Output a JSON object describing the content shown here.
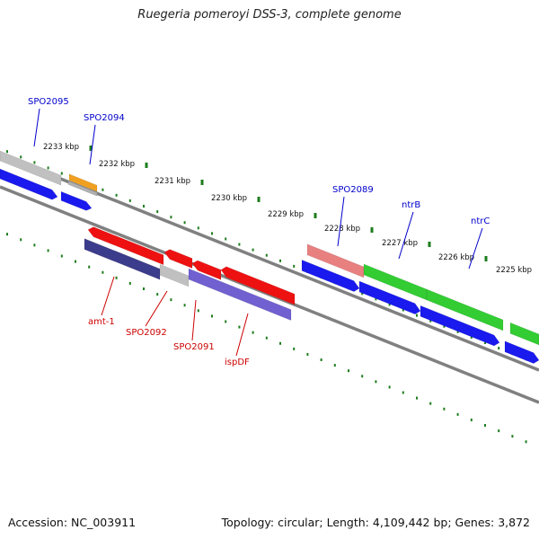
{
  "title": "Ruegeria pomeroyi DSS-3, complete genome",
  "footer": {
    "accession": "Accession: NC_003911",
    "topology": "Topology: circular; Length: 4,109,442 bp; Genes: 3,872"
  },
  "colors": {
    "backbone": "#707070",
    "tick": "#1e7d1e",
    "forward_label": "#0000cc",
    "reverse_label": "#cc0000"
  },
  "ticks": [
    "2233 kbp",
    "2232 kbp",
    "2231 kbp",
    "2230 kbp",
    "2229 kbp",
    "2228 kbp",
    "2227 kbp",
    "2226 kbp",
    "2225 kbp"
  ],
  "forward_genes": [
    {
      "label": "SPO2095",
      "color": "#c0c0c0"
    },
    {
      "label": "SPO2094",
      "color": "#f0a020"
    },
    {
      "label": "SPO2089",
      "color": "#e88080"
    },
    {
      "label": "ntrB",
      "color": "#33cc33"
    },
    {
      "label": "ntrC",
      "color": "#33cc33"
    }
  ],
  "reverse_genes": [
    {
      "label": "amt-1",
      "color": "#3c3c8c"
    },
    {
      "label": "SPO2092",
      "color": "#c0c0c0"
    },
    {
      "label": "SPO2091",
      "color": "#7060d0"
    },
    {
      "label": "ispDF",
      "color": "#7060d0"
    }
  ]
}
